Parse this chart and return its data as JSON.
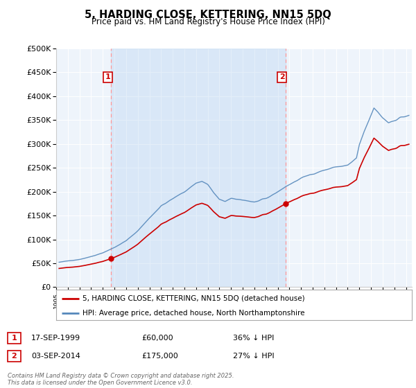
{
  "title": "5, HARDING CLOSE, KETTERING, NN15 5DQ",
  "subtitle": "Price paid vs. HM Land Registry's House Price Index (HPI)",
  "sale1_date": "17-SEP-1999",
  "sale1_price": 60000,
  "sale1_label": "36% ↓ HPI",
  "sale1_year": 1999.71,
  "sale2_date": "03-SEP-2014",
  "sale2_price": 175000,
  "sale2_label": "27% ↓ HPI",
  "sale2_year": 2014.67,
  "red_line_color": "#cc0000",
  "blue_line_color": "#5588bb",
  "vline_color": "#ff9999",
  "shade_color": "#ddeeff",
  "legend1": "5, HARDING CLOSE, KETTERING, NN15 5DQ (detached house)",
  "legend2": "HPI: Average price, detached house, North Northamptonshire",
  "footer": "Contains HM Land Registry data © Crown copyright and database right 2025.\nThis data is licensed under the Open Government Licence v3.0.",
  "ylim": [
    0,
    500000
  ],
  "xlim_start": 1995.25,
  "xlim_end": 2025.5,
  "background_color": "#ffffff",
  "plot_bg_color": "#eef4fb"
}
